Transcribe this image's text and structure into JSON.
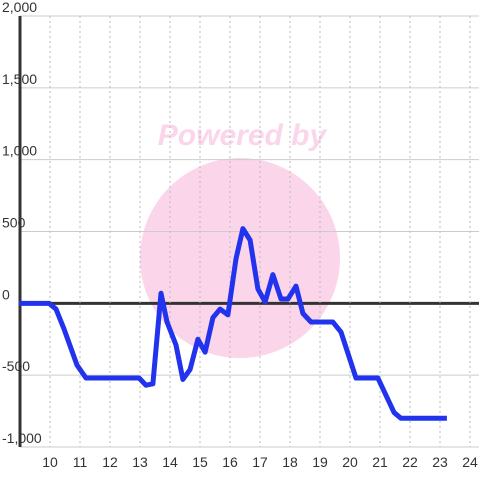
{
  "chart_data": {
    "type": "line",
    "watermark": "Powered by",
    "x": [
      8.97,
      9.97,
      10.2,
      10.47,
      10.9,
      11.2,
      12.97,
      13.2,
      13.43,
      13.7,
      13.9,
      14.2,
      14.43,
      14.67,
      14.93,
      15.17,
      15.43,
      15.67,
      15.93,
      16.2,
      16.43,
      16.67,
      16.93,
      17.17,
      17.43,
      17.7,
      17.93,
      18.2,
      18.43,
      18.7,
      19.43,
      19.7,
      20.2,
      20.93,
      21.2,
      21.47,
      21.7,
      23.23
    ],
    "series": [
      {
        "color": "#2233ee",
        "values": [
          0,
          0,
          -40,
          -180,
          -430,
          -520,
          -520,
          -570,
          -560,
          70,
          -130,
          -290,
          -530,
          -460,
          -250,
          -340,
          -100,
          -40,
          -80,
          310,
          520,
          440,
          100,
          10,
          200,
          30,
          30,
          120,
          -70,
          -130,
          -130,
          -200,
          -520,
          -520,
          -640,
          -760,
          -800,
          -800
        ]
      }
    ],
    "xlim": [
      9,
      24.3
    ],
    "xticks": [
      10,
      11,
      12,
      13,
      14,
      15,
      16,
      17,
      18,
      19,
      20,
      21,
      22,
      23,
      24
    ],
    "ylim": [
      -1000,
      2000
    ],
    "yticks": [
      {
        "value": -1000,
        "label": "-1,000"
      },
      {
        "value": -500,
        "label": "-500"
      },
      0,
      500,
      {
        "value": 1000,
        "label": "1,000"
      },
      {
        "value": 1500,
        "label": "1,500"
      },
      {
        "value": 2000,
        "label": "2,000"
      }
    ],
    "grid": true
  }
}
